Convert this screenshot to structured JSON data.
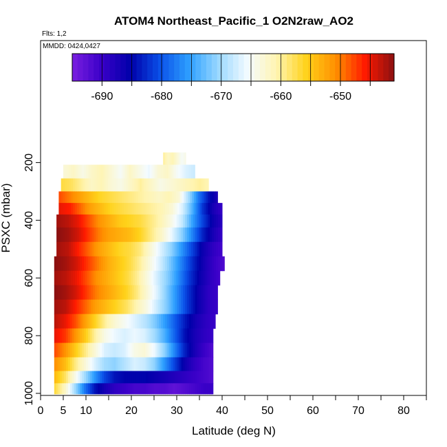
{
  "chart_data": {
    "type": "heatmap",
    "title": "ATOM4 Northeast_Pacific_1 O2N2raw_AO2",
    "subtitle": "Flts: 1,2",
    "annotation": "MMDD: 0424,0427",
    "xlabel": "Latitude (deg N)",
    "ylabel": "PSXC (mbar)",
    "xlim": [
      0,
      85
    ],
    "ylim": [
      1010,
      120
    ],
    "y_reversed": true,
    "grid": false,
    "xticks": [
      0,
      5,
      10,
      20,
      30,
      40,
      50,
      60,
      70,
      80
    ],
    "xtick_labels": [
      "0",
      "5",
      "10",
      "20",
      "30",
      "40",
      "50",
      "60",
      "70",
      "80"
    ],
    "yticks": [
      200,
      400,
      600,
      800,
      1000
    ],
    "ytick_labels": [
      "200",
      "400",
      "600",
      "800",
      "1000"
    ],
    "colorbar": {
      "range": [
        -695,
        -641
      ],
      "ticks": [
        -690,
        -680,
        -670,
        -660,
        -650
      ],
      "tick_labels": [
        "-690",
        "-680",
        "-670",
        "-660",
        "-650"
      ],
      "colors": [
        "#7a1fe0",
        "#3a00c8",
        "#0000aa",
        "#0a50e8",
        "#2ea0ff",
        "#9ad8ff",
        "#f4fbff",
        "#fff4b0",
        "#ffd21a",
        "#ff9000",
        "#ff1a00",
        "#8b1010"
      ]
    },
    "profiles": [
      {
        "p": 185,
        "lat_min": 27,
        "lat_max": 32,
        "values": [
          -660,
          -662,
          -661,
          -663,
          -665,
          -664
        ]
      },
      {
        "p": 230,
        "lat_min": 5,
        "lat_max": 34,
        "values": [
          -663,
          -662,
          -664,
          -662,
          -661,
          -663,
          -665,
          -662,
          -664,
          -666,
          -663,
          -662,
          -665,
          -667,
          -668
        ]
      },
      {
        "p": 280,
        "lat_min": 4.5,
        "lat_max": 37,
        "values": [
          -657,
          -658,
          -660,
          -662,
          -661,
          -663,
          -664,
          -662,
          -660,
          -662,
          -664,
          -663,
          -662,
          -661,
          -660,
          -661
        ]
      },
      {
        "p": 320,
        "lat_min": 4,
        "lat_max": 39,
        "values": [
          -648,
          -650,
          -652,
          -654,
          -656,
          -657,
          -658,
          -659,
          -660,
          -661,
          -662,
          -661,
          -663,
          -670,
          -678,
          -684,
          -688
        ]
      },
      {
        "p": 360,
        "lat_min": 4,
        "lat_max": 40,
        "values": [
          -645,
          -646,
          -649,
          -652,
          -654,
          -656,
          -657,
          -658,
          -659,
          -660,
          -661,
          -663,
          -667,
          -674,
          -682,
          -687,
          -690
        ]
      },
      {
        "p": 400,
        "lat_min": 3.5,
        "lat_max": 40,
        "values": [
          -642,
          -643,
          -645,
          -648,
          -651,
          -653,
          -655,
          -656,
          -657,
          -659,
          -661,
          -664,
          -668,
          -675,
          -681,
          -686,
          -689
        ]
      },
      {
        "p": 450,
        "lat_min": 3.5,
        "lat_max": 40,
        "values": [
          -641,
          -642,
          -644,
          -647,
          -650,
          -652,
          -653,
          -654,
          -656,
          -659,
          -662,
          -666,
          -671,
          -677,
          -683,
          -687,
          -690
        ]
      },
      {
        "p": 500,
        "lat_min": 3.5,
        "lat_max": 40,
        "values": [
          -642,
          -643,
          -646,
          -649,
          -652,
          -654,
          -656,
          -657,
          -659,
          -663,
          -667,
          -671,
          -676,
          -681,
          -686,
          -689,
          -691
        ]
      },
      {
        "p": 550,
        "lat_min": 3,
        "lat_max": 40.5,
        "values": [
          -641,
          -642,
          -644,
          -647,
          -650,
          -653,
          -655,
          -657,
          -660,
          -664,
          -668,
          -673,
          -678,
          -683,
          -687,
          -690,
          -692
        ]
      },
      {
        "p": 600,
        "lat_min": 3,
        "lat_max": 39.5,
        "values": [
          -642,
          -643,
          -645,
          -648,
          -651,
          -653,
          -655,
          -657,
          -660,
          -664,
          -668,
          -672,
          -677,
          -682,
          -686,
          -689,
          -691
        ]
      },
      {
        "p": 650,
        "lat_min": 3,
        "lat_max": 39,
        "values": [
          -641,
          -642,
          -644,
          -647,
          -650,
          -652,
          -654,
          -656,
          -659,
          -663,
          -667,
          -672,
          -677,
          -682,
          -686,
          -689,
          -690
        ]
      },
      {
        "p": 700,
        "lat_min": 3,
        "lat_max": 39,
        "values": [
          -642,
          -643,
          -646,
          -649,
          -652,
          -654,
          -656,
          -658,
          -661,
          -664,
          -668,
          -672,
          -677,
          -682,
          -686,
          -689,
          -690
        ]
      },
      {
        "p": 750,
        "lat_min": 3,
        "lat_max": 38.5,
        "values": [
          -643,
          -645,
          -648,
          -652,
          -656,
          -660,
          -663,
          -665,
          -667,
          -669,
          -672,
          -676,
          -680,
          -684,
          -687,
          -689,
          -690
        ]
      },
      {
        "p": 800,
        "lat_min": 3,
        "lat_max": 38,
        "values": [
          -645,
          -647,
          -651,
          -655,
          -660,
          -664,
          -666,
          -667,
          -666,
          -667,
          -670,
          -674,
          -679,
          -684,
          -687,
          -689,
          -690
        ]
      },
      {
        "p": 850,
        "lat_min": 3,
        "lat_max": 38,
        "values": [
          -648,
          -651,
          -655,
          -659,
          -663,
          -667,
          -668,
          -667,
          -664,
          -663,
          -666,
          -671,
          -677,
          -683,
          -687,
          -690,
          -692
        ]
      },
      {
        "p": 900,
        "lat_min": 3,
        "lat_max": 38,
        "values": [
          -651,
          -654,
          -659,
          -663,
          -667,
          -670,
          -671,
          -669,
          -667,
          -668,
          -671,
          -676,
          -681,
          -686,
          -689,
          -691,
          -692
        ]
      },
      {
        "p": 945,
        "lat_min": 3,
        "lat_max": 38,
        "values": [
          -654,
          -658,
          -664,
          -670,
          -676,
          -681,
          -684,
          -685,
          -685,
          -685,
          -686,
          -687,
          -688,
          -689,
          -690,
          -691,
          -692
        ]
      },
      {
        "p": 985,
        "lat_min": 3,
        "lat_max": 38,
        "values": [
          -657,
          -662,
          -670,
          -678,
          -684,
          -687,
          -689,
          -690,
          -691,
          -691,
          -692,
          -692,
          -693,
          -692,
          -691,
          -690,
          -690
        ]
      }
    ]
  }
}
